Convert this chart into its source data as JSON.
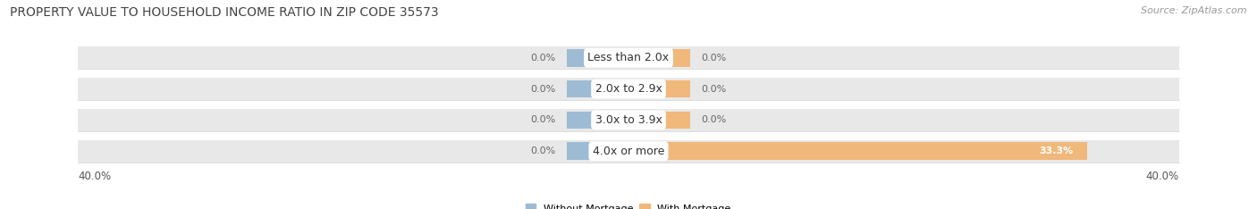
{
  "title": "Property Value to Household Income Ratio in Zip Code 35573",
  "source": "Source: ZipAtlas.com",
  "categories": [
    "Less than 2.0x",
    "2.0x to 2.9x",
    "3.0x to 3.9x",
    "4.0x or more"
  ],
  "without_mortgage": [
    0.0,
    0.0,
    0.0,
    0.0
  ],
  "with_mortgage": [
    0.0,
    0.0,
    0.0,
    33.3
  ],
  "left_axis_label": "40.0%",
  "right_axis_label": "40.0%",
  "xlim_left": -40,
  "xlim_right": 40,
  "color_without": "#9dbcd4",
  "color_with": "#f0b87a",
  "bar_bg_color": "#e8e8e8",
  "bar_separator_color": "#cccccc",
  "bar_height": 0.72,
  "stub_size": 4.5,
  "legend_without": "Without Mortgage",
  "legend_with": "With Mortgage",
  "title_fontsize": 10,
  "source_fontsize": 8,
  "label_fontsize": 8,
  "tick_fontsize": 8.5,
  "category_fontsize": 9
}
